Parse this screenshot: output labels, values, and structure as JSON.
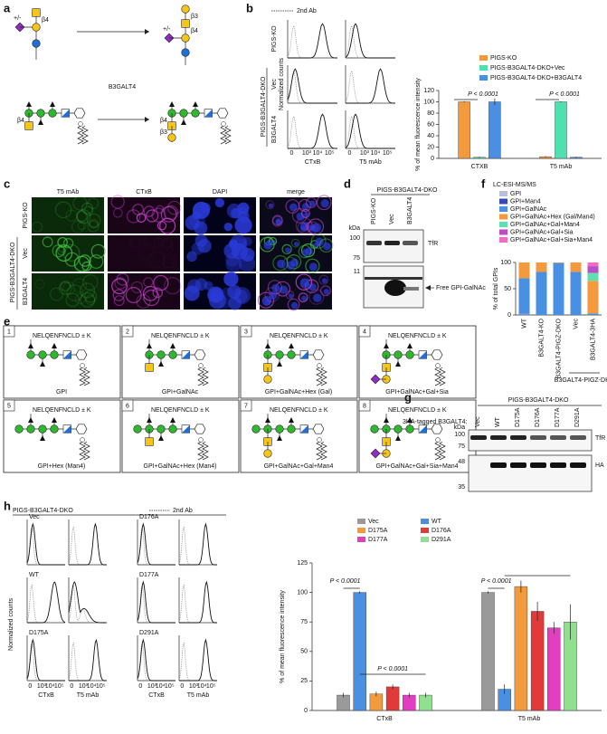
{
  "panel_letters": [
    "a",
    "b",
    "c",
    "d",
    "e",
    "f",
    "g",
    "h"
  ],
  "a": {
    "enzyme": "B3GALT4",
    "beta4": "β4",
    "beta3": "β3",
    "sia_optional": "+/-"
  },
  "b": {
    "legend_2nd_ab": "2nd Ab",
    "rows": [
      "PIGS-KO",
      "Vec",
      "B3GALT4"
    ],
    "group": "PIGS-B3GALT4-DKO",
    "ylabel": "Normalized counts",
    "xlabels": [
      "CTxB",
      "T5 mAb"
    ],
    "hist_ticks": [
      "0",
      "10³",
      "10⁴",
      "10⁵"
    ],
    "chart": {
      "type": "bar",
      "ylabel": "% of mean fluorescence intensity",
      "categories": [
        "CTXB",
        "T5 mAb"
      ],
      "ylim": [
        0,
        120
      ],
      "yticks": [
        0,
        20,
        40,
        60,
        80,
        100,
        120
      ],
      "p_values": [
        "P < 0.0001",
        "P < 0.0001"
      ],
      "series": [
        {
          "name": "PIGS-KO",
          "color": "#f39a3c",
          "values": [
            100,
            3
          ],
          "errors": [
            1,
            1
          ]
        },
        {
          "name": "PIGS-B3GALT4-DKO+Vec",
          "color": "#4fe0b0",
          "values": [
            2,
            100
          ],
          "errors": [
            1,
            1
          ]
        },
        {
          "name": "PIGS-B3GALT4-DKO+B3GALT4",
          "color": "#4a90e2",
          "values": [
            100,
            2
          ],
          "errors": [
            6,
            1
          ]
        }
      ]
    }
  },
  "c": {
    "columns": [
      "T5 mAb",
      "CTxB",
      "DAPI",
      "merge"
    ],
    "rows": [
      "PIGS-KO",
      "Vec",
      "B3GALT4"
    ],
    "group": "PIGS-B3GALT4-DKO"
  },
  "d": {
    "title": "PIGS-B3GALT4-DKO",
    "lanes": [
      "PIGS-KO",
      "Vec",
      "B3GALT4"
    ],
    "kda": "kDa",
    "markers": [
      "100",
      "75",
      "11"
    ],
    "band_labels": [
      "TfR",
      "Free GPI-GalNAc"
    ]
  },
  "e": {
    "peptide": "NELQENFNCLD ± K",
    "boxes": [
      {
        "number": "1",
        "caption": "GPI"
      },
      {
        "number": "2",
        "caption": "GPI+GalNAc"
      },
      {
        "number": "3",
        "caption": "GPI+GalNAc+Hex (Gal)"
      },
      {
        "number": "4",
        "caption": "GPI+GalNAc+Gal+Sia"
      },
      {
        "number": "5",
        "caption": "GPI+Hex (Man4)"
      },
      {
        "number": "6",
        "caption": "GPI+GalNAc+Hex (Man4)"
      },
      {
        "number": "7",
        "caption": "GPI+GalNAc+Gal+Man4"
      },
      {
        "number": "8",
        "caption": "GPI+GalNAc+Gal+Sia+Man4"
      }
    ]
  },
  "f": {
    "method": "LC-ESI-MS/MS",
    "chart": {
      "type": "stacked_bar",
      "ylabel": "% of total GPIs",
      "categories": [
        "WT",
        "B3GALT4-KO",
        "B3GALT4-PIGZ-DKO",
        "Vec",
        "B3GALT4-3HA"
      ],
      "group_label": "B3GALT4-PIGZ-DKO",
      "ylim": [
        0,
        100
      ],
      "yticks": [
        0,
        50,
        100
      ],
      "series": [
        {
          "name": "GPI",
          "color": "#b8c0dc",
          "values": [
            1,
            0,
            0,
            0,
            0
          ]
        },
        {
          "name": "GPI+Man4",
          "color": "#3548b8",
          "values": [
            1,
            0,
            0,
            0,
            0
          ]
        },
        {
          "name": "GPI+GalNAc",
          "color": "#4a90e2",
          "values": [
            68,
            82,
            99,
            82,
            3
          ]
        },
        {
          "name": "GPI+GalNAc+Hex (Gal/Man4)",
          "color": "#f39a3c",
          "values": [
            30,
            18,
            1,
            18,
            62
          ]
        },
        {
          "name": "GPI+GalNAc+Gal+Man4",
          "color": "#5fe0b0",
          "values": [
            0,
            0,
            0,
            0,
            15
          ]
        },
        {
          "name": "GPI+GalNAc+Gal+Sia",
          "color": "#b84fc8",
          "values": [
            0,
            0,
            0,
            0,
            13
          ]
        },
        {
          "name": "GPI+GalNAc+Gal+Sia+Man4",
          "color": "#f26ac4",
          "values": [
            0,
            0,
            0,
            0,
            7
          ]
        }
      ]
    }
  },
  "g": {
    "title": "PIGS-B3GALT4-DKO",
    "construct": "3HA-tagged B3GALT4:",
    "lanes": [
      "Vec",
      "WT",
      "D175A",
      "D176A",
      "D177A",
      "D291A"
    ],
    "kda": "kDa",
    "markers": [
      "100",
      "75",
      "48",
      "35"
    ],
    "band_labels": [
      "TfR",
      "HA"
    ]
  },
  "h": {
    "title": "PIGS-B3GALT4-DKO",
    "legend_2nd_ab": "2nd Ab",
    "hist_labels": [
      "Vec",
      "WT",
      "D175A",
      "D176A",
      "D177A",
      "D291A"
    ],
    "ylabel": "Normalized counts",
    "xlabels": [
      "CTxB",
      "T5 mAb"
    ],
    "hist_ticks": [
      "0",
      "10³",
      "10⁴",
      "10⁵"
    ],
    "chart": {
      "type": "bar",
      "ylabel": "% of mean fluorescence intensity",
      "categories": [
        "CTxB",
        "T5 mAb"
      ],
      "ylim": [
        0,
        125
      ],
      "yticks": [
        0,
        25,
        50,
        75,
        100,
        125
      ],
      "p_values": [
        "P < 0.0001",
        "P < 0.0001",
        "P < 0.0001"
      ],
      "series": [
        {
          "name": "Vec",
          "color": "#9a9a9a",
          "values": [
            13,
            100
          ],
          "errors": [
            2,
            1
          ]
        },
        {
          "name": "WT",
          "color": "#4a90e2",
          "values": [
            100,
            18
          ],
          "errors": [
            1,
            4
          ]
        },
        {
          "name": "D175A",
          "color": "#f39a3c",
          "values": [
            14,
            105
          ],
          "errors": [
            2,
            5
          ]
        },
        {
          "name": "D176A",
          "color": "#e03a3a",
          "values": [
            20,
            84
          ],
          "errors": [
            2,
            8
          ]
        },
        {
          "name": "D177A",
          "color": "#e040c0",
          "values": [
            13,
            70
          ],
          "errors": [
            2,
            5
          ]
        },
        {
          "name": "D291A",
          "color": "#90e090",
          "values": [
            13,
            75
          ],
          "errors": [
            2,
            15
          ]
        }
      ]
    }
  }
}
